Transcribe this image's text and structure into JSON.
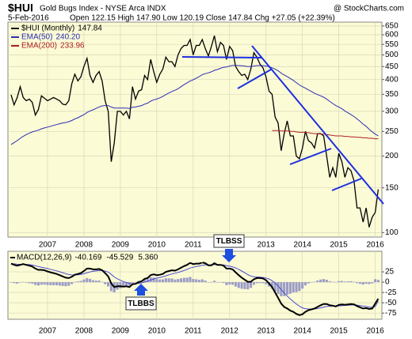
{
  "chart_data": [
    {
      "type": "line",
      "symbol": "$HUI",
      "title": "Gold Bugs Index - NYSE Arca INDX",
      "source": "@ StockCharts.com",
      "date": "5-Feb-2016",
      "quote": "Open 122.15 High 147.90 Low 120.19 Close 147.84 Chg +27.05 (+22.39%)",
      "log_scale": true,
      "grid": true,
      "ylim": [
        96,
        673
      ],
      "yticks": [
        650,
        600,
        550,
        500,
        450,
        400,
        350,
        300,
        250,
        200,
        150,
        100
      ],
      "categories": [
        null,
        null,
        null,
        null,
        null,
        null,
        null,
        null,
        null,
        null,
        null,
        null,
        "2007",
        null,
        null,
        null,
        null,
        null,
        null,
        null,
        null,
        null,
        null,
        null,
        "2008",
        null,
        null,
        null,
        null,
        null,
        null,
        null,
        null,
        null,
        null,
        null,
        "2009",
        null,
        null,
        null,
        null,
        null,
        null,
        null,
        null,
        null,
        null,
        null,
        "2010",
        null,
        null,
        null,
        null,
        null,
        null,
        null,
        null,
        null,
        null,
        null,
        "2011",
        null,
        null,
        null,
        null,
        null,
        null,
        null,
        null,
        null,
        null,
        null,
        "2012",
        null,
        null,
        null,
        null,
        null,
        null,
        null,
        null,
        null,
        null,
        null,
        "2013",
        null,
        null,
        null,
        null,
        null,
        null,
        null,
        null,
        null,
        null,
        null,
        "2014",
        null,
        null,
        null,
        null,
        null,
        null,
        null,
        null,
        null,
        null,
        null,
        "2015",
        null,
        null,
        null,
        null,
        null,
        null,
        null,
        null,
        null,
        null,
        null,
        "2016",
        null
      ],
      "series": [
        {
          "name": "$HUI (Monthly)",
          "label_value": "147.84",
          "color": "#000000",
          "width": 1.3,
          "values": [
            348,
            318,
            340,
            375,
            340,
            330,
            335,
            325,
            290,
            305,
            345,
            338,
            330,
            335,
            340,
            335,
            330,
            320,
            318,
            330,
            385,
            420,
            395,
            410,
            450,
            485,
            415,
            390,
            415,
            430,
            395,
            330,
            300,
            190,
            225,
            300,
            300,
            290,
            300,
            280,
            375,
            335,
            360,
            365,
            415,
            400,
            480,
            430,
            390,
            420,
            440,
            490,
            470,
            470,
            450,
            500,
            530,
            545,
            545,
            575,
            500,
            545,
            545,
            575,
            530,
            495,
            540,
            595,
            515,
            560,
            545,
            480,
            540,
            520,
            450,
            430,
            415,
            420,
            400,
            440,
            510,
            490,
            460,
            445,
            410,
            360,
            350,
            285,
            270,
            210,
            245,
            275,
            240,
            240,
            200,
            195,
            215,
            250,
            230,
            225,
            215,
            245,
            245,
            240,
            200,
            165,
            180,
            165,
            205,
            190,
            165,
            180,
            175,
            160,
            125,
            125,
            110,
            125,
            105,
            115,
            120,
            147.84
          ]
        },
        {
          "name": "EMA(50)",
          "label_value": "240.20",
          "color": "#2d2db4",
          "width": 1,
          "values": [
            222,
            226,
            230,
            235,
            239,
            243,
            246,
            249,
            251,
            253,
            256,
            258,
            260,
            262,
            264,
            266,
            268,
            270,
            271,
            273,
            276,
            280,
            283,
            287,
            291,
            297,
            301,
            304,
            308,
            312,
            315,
            316,
            316,
            312,
            309,
            309,
            309,
            309,
            309,
            308,
            311,
            312,
            314,
            316,
            320,
            323,
            329,
            333,
            335,
            339,
            343,
            349,
            354,
            359,
            363,
            368,
            375,
            382,
            388,
            395,
            399,
            405,
            411,
            418,
            422,
            425,
            429,
            435,
            438,
            443,
            447,
            448,
            452,
            455,
            455,
            454,
            453,
            452,
            450,
            450,
            452,
            454,
            454,
            454,
            452,
            449,
            445,
            440,
            433,
            424,
            417,
            411,
            404,
            397,
            389,
            381,
            375,
            370,
            364,
            359,
            353,
            349,
            345,
            341,
            335,
            328,
            322,
            316,
            312,
            307,
            301,
            296,
            291,
            286,
            280,
            274,
            267,
            262,
            255,
            249,
            244,
            240.2
          ]
        },
        {
          "name": "EMA(200)",
          "label_value": "233.96",
          "color": "#b02020",
          "width": 1,
          "values": [
            null,
            null,
            null,
            null,
            null,
            null,
            null,
            null,
            null,
            null,
            null,
            null,
            null,
            null,
            null,
            null,
            null,
            null,
            null,
            null,
            null,
            null,
            null,
            null,
            null,
            null,
            null,
            null,
            null,
            null,
            null,
            null,
            null,
            null,
            null,
            null,
            null,
            null,
            null,
            null,
            null,
            null,
            null,
            null,
            null,
            null,
            null,
            null,
            null,
            null,
            null,
            null,
            null,
            null,
            null,
            null,
            null,
            null,
            null,
            null,
            null,
            null,
            null,
            null,
            null,
            null,
            null,
            null,
            null,
            null,
            null,
            null,
            null,
            null,
            null,
            null,
            null,
            null,
            null,
            null,
            null,
            null,
            null,
            null,
            null,
            null,
            252,
            252,
            252,
            251,
            251,
            251,
            250,
            250,
            249,
            248,
            248,
            248,
            247,
            246,
            245,
            245,
            244,
            244,
            243,
            242,
            241,
            240,
            240,
            240,
            239,
            239,
            238,
            238,
            237,
            237,
            236,
            236,
            235,
            235,
            234,
            233.96
          ]
        }
      ]
    },
    {
      "type": "macd",
      "legend": "MACD(12,26,9)",
      "legend_values": [
        "-40.169",
        "-45.529",
        "5.360"
      ],
      "annotations": [
        "TLBSS",
        "TLBBS"
      ],
      "grid": true,
      "ylim": [
        -90,
        75
      ],
      "yticks": [
        25,
        0,
        -25,
        -50,
        -75
      ],
      "categories": [
        null,
        null,
        null,
        null,
        null,
        null,
        null,
        null,
        null,
        null,
        null,
        null,
        "2007",
        null,
        null,
        null,
        null,
        null,
        null,
        null,
        null,
        null,
        null,
        null,
        "2008",
        null,
        null,
        null,
        null,
        null,
        null,
        null,
        null,
        null,
        null,
        null,
        "2009",
        null,
        null,
        null,
        null,
        null,
        null,
        null,
        null,
        null,
        null,
        null,
        "2010",
        null,
        null,
        null,
        null,
        null,
        null,
        null,
        null,
        null,
        null,
        null,
        "2011",
        null,
        null,
        null,
        null,
        null,
        null,
        null,
        null,
        null,
        null,
        null,
        "2012",
        null,
        null,
        null,
        null,
        null,
        null,
        null,
        null,
        null,
        null,
        null,
        "2013",
        null,
        null,
        null,
        null,
        null,
        null,
        null,
        null,
        null,
        null,
        null,
        "2014",
        null,
        null,
        null,
        null,
        null,
        null,
        null,
        null,
        null,
        null,
        null,
        "2015",
        null,
        null,
        null,
        null,
        null,
        null,
        null,
        null,
        null,
        null,
        null,
        "2016",
        null
      ],
      "series": [
        {
          "style": "histogram",
          "color": "#9c9cc8",
          "values": [
            0,
            -2.4,
            -3.5,
            -1.2,
            0.6,
            -1.1,
            -2.5,
            -3.6,
            -6.9,
            -7.9,
            -6.3,
            -5.8,
            -7,
            -7.2,
            -7.4,
            -7.5,
            -8.4,
            -9.1,
            -9.7,
            -8.6,
            -4.5,
            0.4,
            1.9,
            3.1,
            6.5,
            10,
            8,
            4.8,
            3.8,
            3.9,
            0.7,
            -5,
            -10.4,
            -21.9,
            -24.7,
            -18.2,
            -14.6,
            -12.5,
            -9.2,
            -9,
            -1.6,
            -0.5,
            2.8,
            3.8,
            7.8,
            7.8,
            11.9,
            11.1,
            7.3,
            6.6,
            6.9,
            9.5,
            9.2,
            9,
            6.4,
            7.5,
            9.2,
            10.6,
            10.9,
            12.7,
            7.8,
            7,
            5.6,
            6.9,
            3.9,
            -0.9,
            -0.7,
            3.4,
            -0.5,
            -0.4,
            -1.9,
            -7.1,
            -5.7,
            -6.2,
            -10.5,
            -14,
            -16,
            -16.8,
            -17.4,
            -13.9,
            -6.3,
            -2.6,
            -2.1,
            -2.5,
            -5.2,
            -10.6,
            -15.7,
            -23,
            -28.8,
            -34.2,
            -33.8,
            -30.2,
            -28.2,
            -25,
            -24,
            -21.6,
            -15.7,
            -7.8,
            -3,
            -0.8,
            1,
            4,
            6.4,
            7.5,
            6,
            2.4,
            1.1,
            -0.7,
            2.6,
            2.9,
            1.5,
            2,
            2.4,
            1.1,
            -2.3,
            -4.2,
            -5.8,
            -3.8,
            -4.6,
            -2.9,
            7.3,
            5.36
          ]
        },
        {
          "style": "line",
          "color": "#4a4ad0",
          "width": 1,
          "values": [
            45,
            44.4,
            43.5,
            43.2,
            43.4,
            43.1,
            42.5,
            41.6,
            39.9,
            37.9,
            36.3,
            34.8,
            33,
            31.2,
            29.4,
            27.5,
            25.4,
            23.1,
            20.7,
            18.6,
            17.5,
            17.6,
            18.1,
            18.9,
            20.5,
            23,
            25,
            26.2,
            27.2,
            28.1,
            28.3,
            27,
            24.4,
            18.9,
            12.7,
            8.2,
            4.6,
            1.5,
            -0.8,
            -3,
            -3.4,
            -3.5,
            -2.8,
            -1.8,
            0.2,
            2.2,
            5.1,
            7.9,
            9.7,
            11.4,
            13.1,
            15.5,
            17.8,
            20,
            21.6,
            23.5,
            25.8,
            28.4,
            31.1,
            34.3,
            36.2,
            38,
            39.4,
            41.1,
            42.1,
            41.9,
            41.7,
            42.6,
            42.5,
            42.4,
            41.9,
            40.1,
            38.7,
            37.2,
            34.5,
            31,
            27,
            22.8,
            18.4,
            14.9,
            13.3,
            12.6,
            12.1,
            11.5,
            10.2,
            7.6,
            3.7,
            -2,
            -9.2,
            -17.8,
            -26.2,
            -33.8,
            -40.8,
            -47,
            -53,
            -58.4,
            -62.3,
            -64.2,
            -65,
            -65.2,
            -65,
            -64,
            -62.4,
            -60.5,
            -59,
            -58.4,
            -58.1,
            -58.3,
            -57.6,
            -56.9,
            -56.5,
            -56,
            -55.4,
            -55.1,
            -55.7,
            -56.8,
            -58.2,
            -59.2,
            -60.4,
            -61.1,
            -59.3,
            -45.529
          ]
        },
        {
          "style": "line",
          "color": "#000000",
          "width": 2,
          "values": [
            45,
            42,
            40,
            42,
            44,
            42,
            40,
            38,
            33,
            30,
            30,
            29,
            26,
            24,
            22,
            20,
            17,
            14,
            11,
            10,
            13,
            18,
            20,
            22,
            27,
            33,
            33,
            31,
            31,
            32,
            29,
            22,
            14,
            -3,
            -12,
            -10,
            -10,
            -11,
            -10,
            -12,
            -5,
            -4,
            0,
            2,
            8,
            10,
            17,
            19,
            17,
            18,
            20,
            25,
            27,
            29,
            28,
            31,
            35,
            39,
            42,
            47,
            44,
            45,
            45,
            48,
            46,
            41,
            41,
            46,
            42,
            42,
            40,
            33,
            33,
            31,
            24,
            17,
            11,
            6,
            1,
            1,
            7,
            10,
            10,
            9,
            5,
            -3,
            -12,
            -25,
            -38,
            -52,
            -60,
            -64,
            -69,
            -72,
            -77,
            -80,
            -78,
            -72,
            -68,
            -66,
            -64,
            -60,
            -56,
            -53,
            -53,
            -56,
            -57,
            -59,
            -55,
            -54,
            -55,
            -54,
            -53,
            -54,
            -58,
            -61,
            -64,
            -63,
            -65,
            -64,
            -52,
            -40.169
          ]
        }
      ]
    }
  ]
}
